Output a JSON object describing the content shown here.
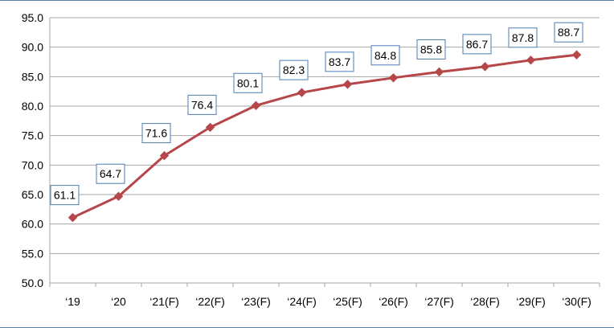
{
  "chart_data": {
    "type": "line",
    "title": "",
    "xlabel": "",
    "ylabel": "",
    "categories": [
      "‘19",
      "‘20",
      "‘21(F)",
      "‘22(F)",
      "‘23(F)",
      "‘24(F)",
      "‘25(F)",
      "‘26(F)",
      "‘27(F)",
      "‘28(F)",
      "‘29(F)",
      "‘30(F)"
    ],
    "series": [
      {
        "values": [
          61.1,
          64.7,
          71.6,
          76.4,
          80.1,
          82.3,
          83.7,
          84.8,
          85.8,
          86.7,
          87.8,
          88.7
        ],
        "data_labels": [
          "61.1",
          "64.7",
          "71.6",
          "76.4",
          "80.1",
          "82.3",
          "83.7",
          "84.8",
          "85.8",
          "86.7",
          "87.8",
          "88.7"
        ],
        "color": "#b5474a",
        "marker": "diamond"
      }
    ],
    "y_ticks": [
      "95.0",
      "90.0",
      "85.0",
      "80.0",
      "75.0",
      "70.0",
      "65.0",
      "60.0",
      "55.0",
      "50.0"
    ],
    "ylim": [
      50,
      95
    ],
    "y_step": 5,
    "grid": "horizontal",
    "legend": "none",
    "colors": {
      "line": "#b5474a",
      "grid": "#a6a6a6",
      "label_border": "#4a7eb5",
      "frame": "#5a7fa8"
    }
  }
}
